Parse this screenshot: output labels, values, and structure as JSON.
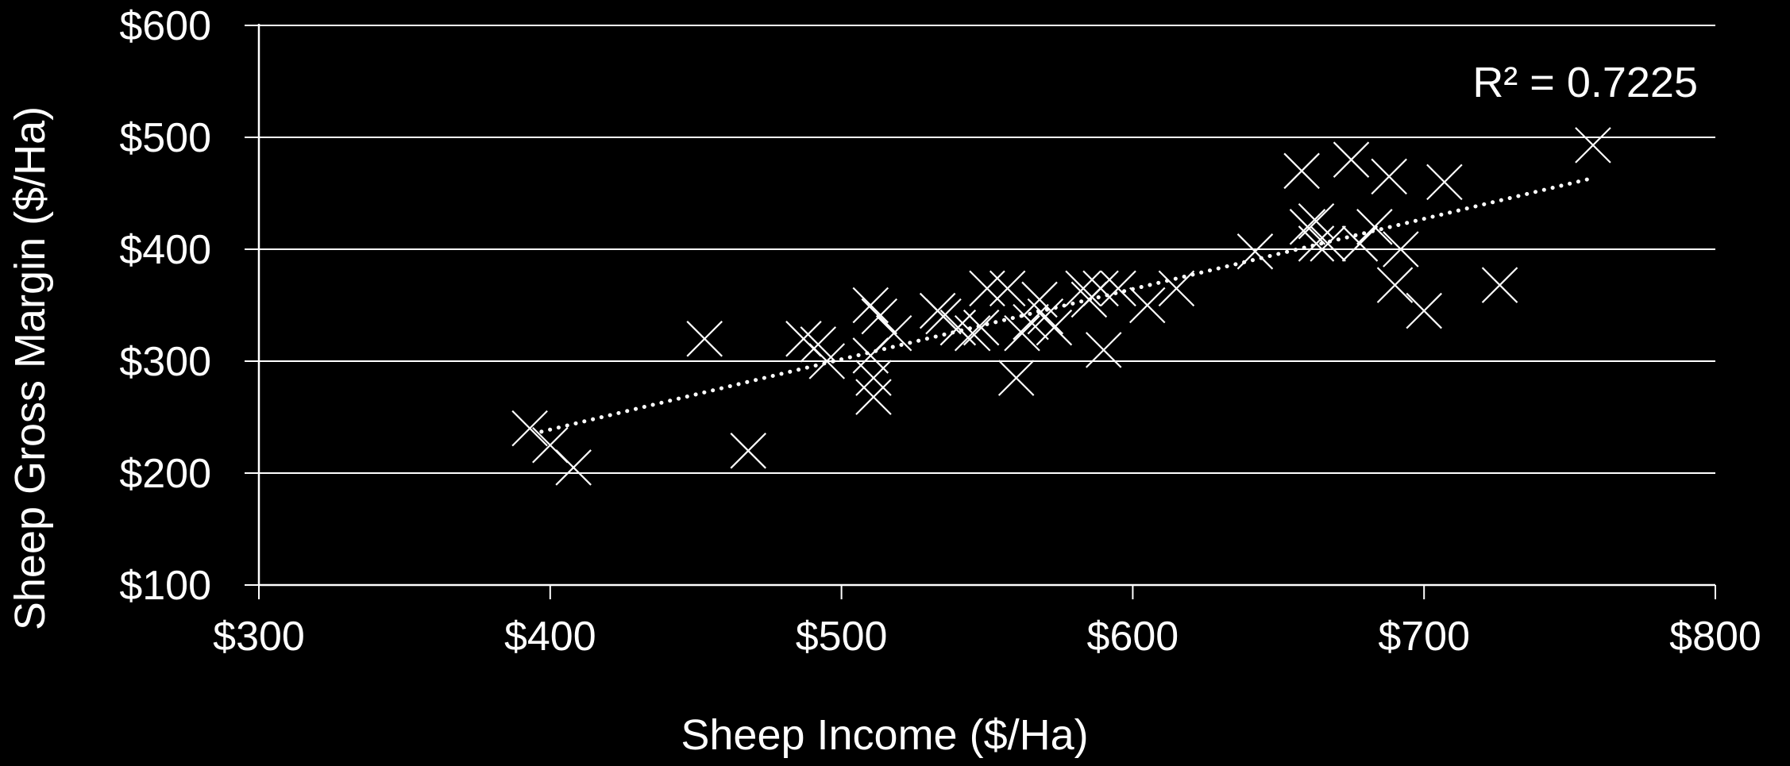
{
  "chart_data": {
    "type": "scatter",
    "xlabel": "Sheep Income ($/Ha)",
    "ylabel": "Sheep Gross Margin ($/Ha)",
    "xlim": [
      300,
      800
    ],
    "ylim": [
      100,
      600
    ],
    "x_ticks": [
      300,
      400,
      500,
      600,
      700,
      800
    ],
    "y_ticks": [
      100,
      200,
      300,
      400,
      500,
      600
    ],
    "x_tick_labels": [
      "$300",
      "$400",
      "$500",
      "$600",
      "$700",
      "$800"
    ],
    "y_tick_labels": [
      "$100",
      "$200",
      "$300",
      "$400",
      "$500",
      "$600"
    ],
    "grid": "horizontal",
    "marker": "x",
    "annotation": "R² = 0.7225",
    "trendline": {
      "style": "dotted",
      "x": [
        397,
        757
      ],
      "y": [
        237,
        463
      ]
    },
    "colors": {
      "background": "#000000",
      "foreground": "#ffffff"
    },
    "points": [
      [
        393,
        240
      ],
      [
        400,
        225
      ],
      [
        408,
        205
      ],
      [
        453,
        320
      ],
      [
        468,
        220
      ],
      [
        487,
        320
      ],
      [
        492,
        315
      ],
      [
        495,
        300
      ],
      [
        510,
        305
      ],
      [
        511,
        285
      ],
      [
        511,
        268
      ],
      [
        510,
        350
      ],
      [
        513,
        340
      ],
      [
        518,
        325
      ],
      [
        533,
        345
      ],
      [
        535,
        340
      ],
      [
        540,
        330
      ],
      [
        545,
        325
      ],
      [
        548,
        330
      ],
      [
        550,
        365
      ],
      [
        557,
        365
      ],
      [
        560,
        285
      ],
      [
        562,
        325
      ],
      [
        565,
        335
      ],
      [
        568,
        355
      ],
      [
        570,
        340
      ],
      [
        573,
        330
      ],
      [
        583,
        365
      ],
      [
        585,
        355
      ],
      [
        589,
        365
      ],
      [
        590,
        310
      ],
      [
        595,
        365
      ],
      [
        605,
        350
      ],
      [
        615,
        365
      ],
      [
        642,
        398
      ],
      [
        658,
        470
      ],
      [
        660,
        420
      ],
      [
        663,
        425
      ],
      [
        663,
        405
      ],
      [
        667,
        405
      ],
      [
        675,
        480
      ],
      [
        678,
        405
      ],
      [
        683,
        420
      ],
      [
        688,
        465
      ],
      [
        690,
        368
      ],
      [
        692,
        400
      ],
      [
        700,
        345
      ],
      [
        707,
        460
      ],
      [
        726,
        368
      ],
      [
        758,
        493
      ]
    ]
  }
}
